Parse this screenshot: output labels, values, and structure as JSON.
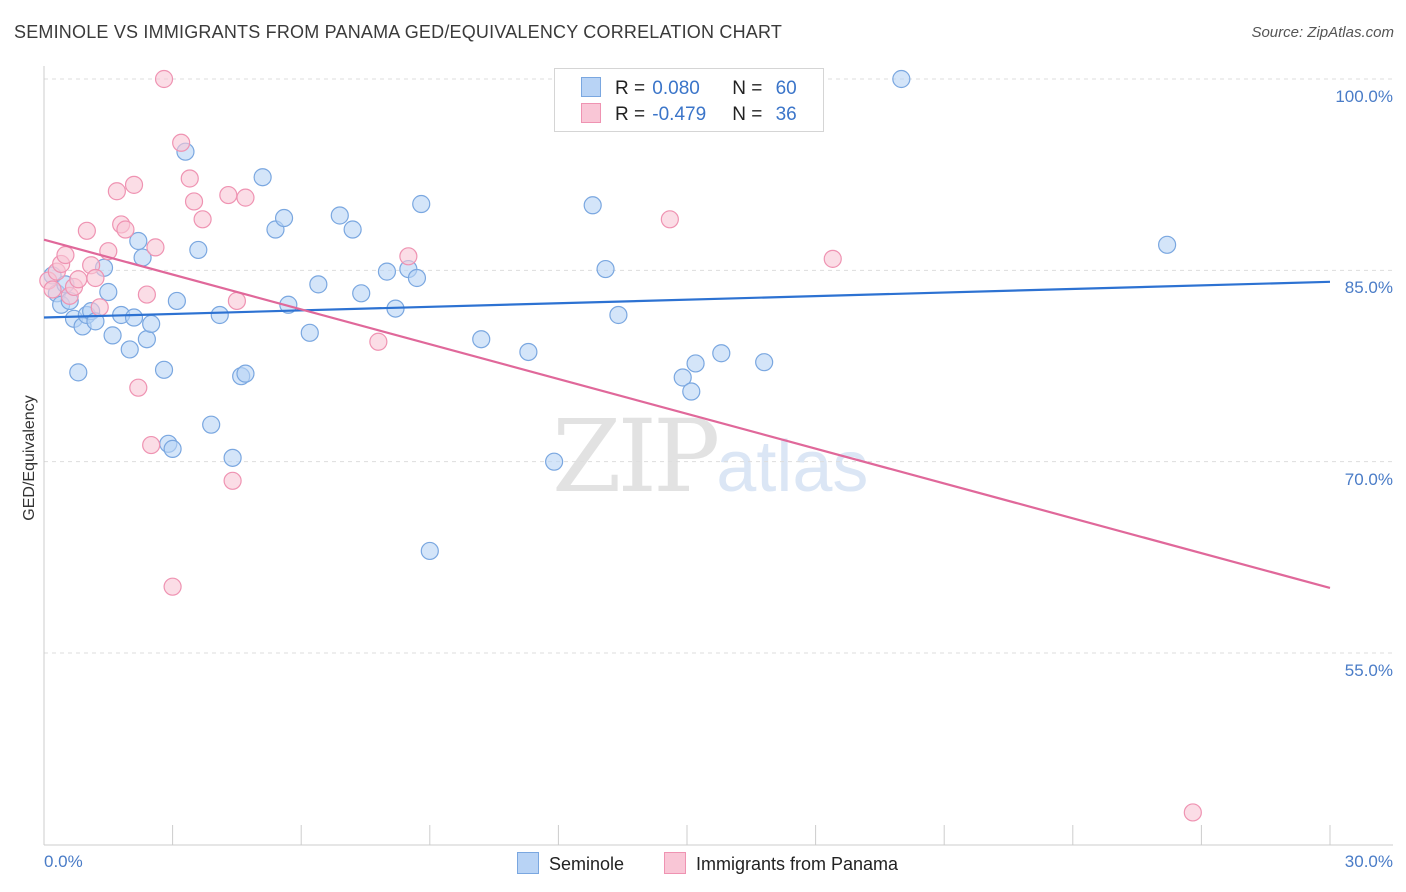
{
  "title": "SEMINOLE VS IMMIGRANTS FROM PANAMA GED/EQUIVALENCY CORRELATION CHART",
  "source": "Source: ZipAtlas.com",
  "watermark": {
    "zip": "ZIP",
    "atlas": "atlas"
  },
  "legend": {
    "rows": [
      {
        "r_label": "R =",
        "r_value": "0.080",
        "n_label": "N =",
        "n_value": "60"
      },
      {
        "r_label": "R =",
        "r_value": "-0.479",
        "n_label": "N =",
        "n_value": "36"
      }
    ]
  },
  "colors": {
    "seminole_fill": "#b8d3f5",
    "seminole_stroke": "#7aa7e0",
    "seminole_line": "#2d72d2",
    "panama_fill": "#f9c6d6",
    "panama_stroke": "#ef93b2",
    "panama_line": "#e0689a",
    "tick_text": "#4a7cc7",
    "grid": "#dddddd"
  },
  "chart_data": {
    "type": "scatter",
    "title": "SEMINOLE VS IMMIGRANTS FROM PANAMA GED/EQUIVALENCY CORRELATION CHART",
    "xlabel": "",
    "ylabel": "GED/Equivalency",
    "xlim": [
      0,
      30
    ],
    "ylim": [
      40,
      102
    ],
    "x_tick_labels": [
      "0.0%",
      "30.0%"
    ],
    "y_ticks": [
      {
        "value": 100,
        "label": "100.0%"
      },
      {
        "value": 85,
        "label": "85.0%"
      },
      {
        "value": 70,
        "label": "70.0%"
      },
      {
        "value": 55,
        "label": "55.0%"
      }
    ],
    "grid": true,
    "legend_position": "top-center",
    "series": [
      {
        "name": "Seminole",
        "trend": {
          "x": [
            0,
            30
          ],
          "y": [
            81.3,
            84.1
          ]
        },
        "points": [
          [
            0.2,
            84.6
          ],
          [
            0.3,
            83.2
          ],
          [
            0.4,
            82.3
          ],
          [
            0.5,
            83.9
          ],
          [
            0.6,
            82.6
          ],
          [
            0.7,
            81.2
          ],
          [
            0.9,
            80.6
          ],
          [
            1.0,
            81.5
          ],
          [
            1.1,
            81.8
          ],
          [
            1.2,
            81.0
          ],
          [
            1.5,
            83.3
          ],
          [
            1.6,
            79.9
          ],
          [
            1.8,
            81.5
          ],
          [
            2.0,
            78.8
          ],
          [
            2.1,
            81.3
          ],
          [
            2.4,
            79.6
          ],
          [
            2.5,
            80.8
          ],
          [
            2.8,
            77.2
          ],
          [
            2.9,
            71.4
          ],
          [
            3.1,
            82.6
          ],
          [
            3.3,
            94.3
          ],
          [
            3.6,
            86.6
          ],
          [
            3.9,
            72.9
          ],
          [
            4.1,
            81.5
          ],
          [
            4.4,
            70.3
          ],
          [
            4.6,
            76.7
          ],
          [
            5.1,
            92.3
          ],
          [
            5.4,
            88.2
          ],
          [
            5.6,
            89.1
          ],
          [
            5.7,
            82.3
          ],
          [
            6.2,
            80.1
          ],
          [
            6.9,
            89.3
          ],
          [
            7.2,
            88.2
          ],
          [
            7.4,
            83.2
          ],
          [
            8.0,
            84.9
          ],
          [
            8.2,
            82.0
          ],
          [
            8.5,
            85.1
          ],
          [
            8.8,
            90.2
          ],
          [
            9.0,
            63.0
          ],
          [
            10.2,
            79.6
          ],
          [
            11.3,
            78.6
          ],
          [
            11.9,
            70.0
          ],
          [
            12.8,
            90.1
          ],
          [
            13.1,
            85.1
          ],
          [
            13.4,
            81.5
          ],
          [
            14.9,
            76.6
          ],
          [
            15.1,
            75.5
          ],
          [
            15.2,
            77.7
          ],
          [
            15.8,
            78.5
          ],
          [
            16.8,
            77.8
          ],
          [
            20.0,
            100.0
          ],
          [
            26.2,
            87.0
          ],
          [
            0.8,
            77.0
          ],
          [
            1.4,
            85.2
          ],
          [
            2.3,
            86.0
          ],
          [
            3.0,
            71.0
          ],
          [
            4.7,
            76.9
          ],
          [
            6.4,
            83.9
          ],
          [
            8.7,
            84.4
          ],
          [
            2.2,
            87.3
          ]
        ]
      },
      {
        "name": "Immigrants from Panama",
        "trend": {
          "x": [
            0,
            30
          ],
          "y": [
            87.4,
            60.1
          ]
        },
        "points": [
          [
            0.1,
            84.2
          ],
          [
            0.2,
            83.5
          ],
          [
            0.3,
            84.9
          ],
          [
            0.4,
            85.5
          ],
          [
            0.5,
            86.2
          ],
          [
            0.6,
            83.0
          ],
          [
            0.7,
            83.7
          ],
          [
            0.8,
            84.3
          ],
          [
            1.0,
            88.1
          ],
          [
            1.1,
            85.4
          ],
          [
            1.2,
            84.4
          ],
          [
            1.3,
            82.1
          ],
          [
            1.5,
            86.5
          ],
          [
            1.7,
            91.2
          ],
          [
            1.8,
            88.6
          ],
          [
            1.9,
            88.2
          ],
          [
            2.1,
            91.7
          ],
          [
            2.2,
            75.8
          ],
          [
            2.4,
            83.1
          ],
          [
            2.5,
            71.3
          ],
          [
            2.6,
            86.8
          ],
          [
            2.8,
            100.0
          ],
          [
            3.0,
            60.2
          ],
          [
            3.2,
            95.0
          ],
          [
            3.4,
            92.2
          ],
          [
            3.5,
            90.4
          ],
          [
            3.7,
            89.0
          ],
          [
            4.3,
            90.9
          ],
          [
            4.4,
            68.5
          ],
          [
            4.5,
            82.6
          ],
          [
            4.7,
            90.7
          ],
          [
            7.8,
            79.4
          ],
          [
            8.5,
            86.1
          ],
          [
            14.6,
            89.0
          ],
          [
            18.4,
            85.9
          ],
          [
            26.8,
            42.5
          ]
        ]
      }
    ]
  },
  "x_axis": {
    "min_label": "0.0%",
    "max_label": "30.0%"
  },
  "y_axis_label": "GED/Equivalency",
  "bottom_legend": [
    {
      "label": "Seminole"
    },
    {
      "label": "Immigrants from Panama"
    }
  ]
}
